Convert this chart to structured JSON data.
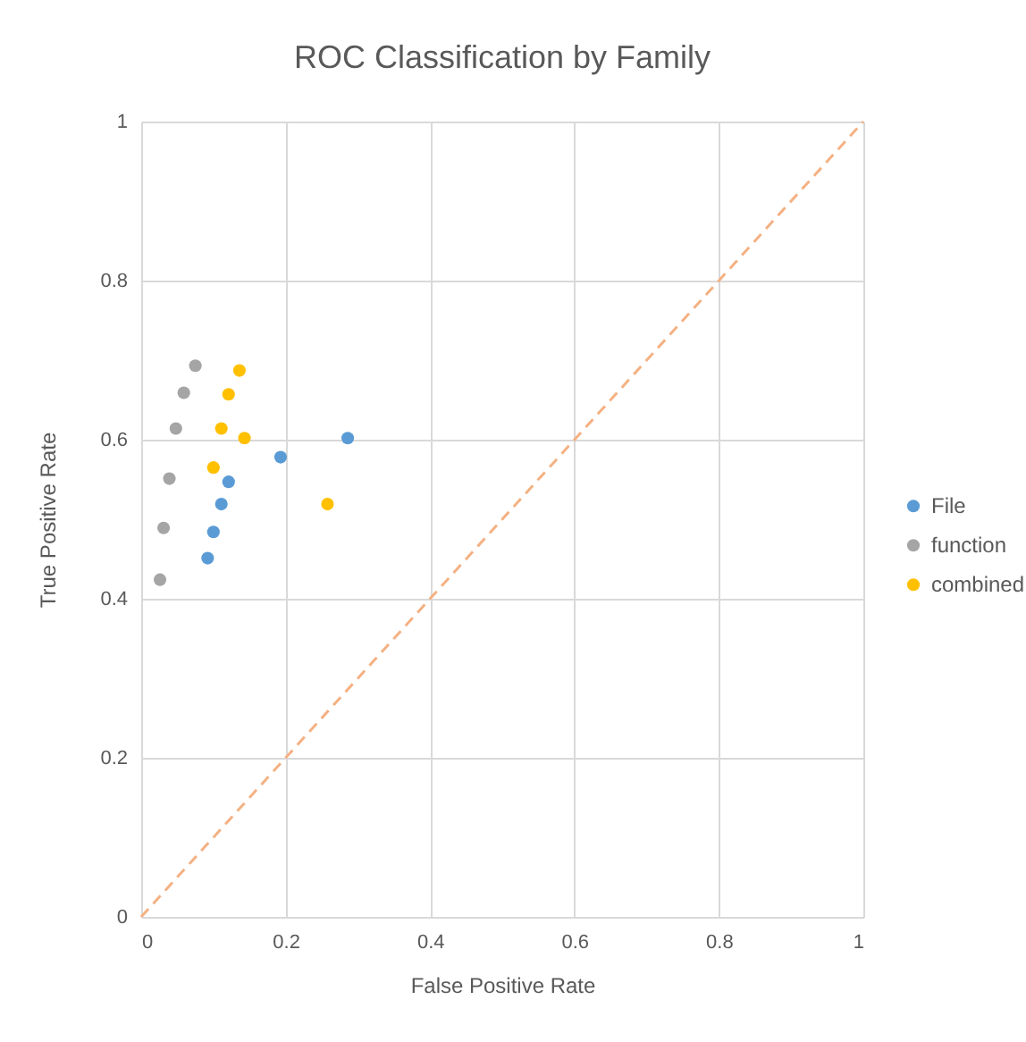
{
  "chart_data": {
    "type": "scatter",
    "title": "ROC Classification by Family",
    "xlabel": "False Positive Rate",
    "ylabel": "True Positive Rate",
    "xlim": [
      0,
      1
    ],
    "ylim": [
      0,
      1
    ],
    "xticks": [
      0,
      0.2,
      0.4,
      0.6,
      0.8,
      1
    ],
    "yticks": [
      0,
      0.2,
      0.4,
      0.6,
      0.8,
      1
    ],
    "grid": true,
    "legend": "right",
    "marker": "circle",
    "series": [
      {
        "name": "File",
        "color": "#5b9bd5",
        "x": [
          0.286,
          0.193,
          0.121,
          0.111,
          0.1,
          0.092
        ],
        "values": [
          0.602,
          0.578,
          0.547,
          0.519,
          0.484,
          0.451
        ]
      },
      {
        "name": "function",
        "color": "#a5a5a5",
        "x": [
          0.075,
          0.059,
          0.048,
          0.039,
          0.031,
          0.026
        ],
        "values": [
          0.693,
          0.659,
          0.614,
          0.551,
          0.489,
          0.424
        ]
      },
      {
        "name": "combined",
        "color": "#ffc000",
        "x": [
          0.136,
          0.121,
          0.111,
          0.143,
          0.1,
          0.258
        ],
        "values": [
          0.687,
          0.657,
          0.614,
          0.602,
          0.565,
          0.519
        ]
      },
      {
        "type": "line",
        "color": "#f4b183",
        "line_style": "dashed",
        "marker": "none",
        "x": [
          0,
          1
        ],
        "values": [
          0,
          1
        ]
      }
    ]
  }
}
